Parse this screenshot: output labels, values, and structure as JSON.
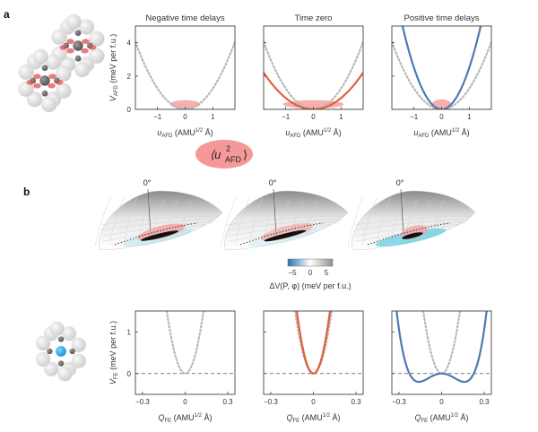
{
  "figure": {
    "panel_labels": [
      "a",
      "b"
    ],
    "colors": {
      "reference_dotted": "#b8b8b8",
      "time_zero": "#e0603c",
      "positive_delay": "#4f79b4",
      "fluctuation_ellipse": "#f4a0a0",
      "baseline": "#555555"
    },
    "u2_badge": {
      "text_main": "⟨u",
      "sup": "2",
      "sub": "AFD",
      "text_close": "⟩"
    },
    "colorbar": {
      "ticks": [
        "−5",
        "0",
        "5"
      ],
      "label": "ΔV(P, φ) (meV per f.u.)",
      "range": [
        -8,
        8
      ],
      "colors": [
        "#2a6fb0",
        "#ffffff",
        "#909090"
      ]
    },
    "landscape_angle_labels": [
      "0°",
      "0°",
      "0°"
    ]
  },
  "chart_data": [
    {
      "type": "line",
      "panel": "a",
      "title": "Negative time delays",
      "xlabel": "u_AFD (AMU^1/2 Å)",
      "xlabel_parts": {
        "sym": "u",
        "sub": "AFD",
        "rest": " (AMU",
        "sup": "1/2",
        "end": " Å)"
      },
      "ylabel": "V_AFD (meV per f.u.)",
      "ylabel_parts": {
        "sym": "V",
        "sub": "AFD",
        "rest": " (meV per f.u.)"
      },
      "xlim": [
        -1.8,
        1.8
      ],
      "ylim": [
        0,
        5
      ],
      "xticks": [
        -1,
        0,
        1
      ],
      "xtick_labels": [
        "−1",
        "0",
        "1"
      ],
      "yticks": [
        0,
        2,
        4
      ],
      "ytick_labels": [
        "0",
        "2",
        "4"
      ],
      "series": [
        {
          "name": "reference",
          "style": "dotted",
          "color": "#b8b8b8",
          "formula": "1.25*x^2"
        }
      ],
      "ellipse": {
        "center": [
          0,
          0.3
        ],
        "half_width": 0.55,
        "half_height": 0.25
      }
    },
    {
      "type": "line",
      "panel": "a",
      "title": "Time zero",
      "xlabel": "u_AFD (AMU^1/2 Å)",
      "xlabel_parts": {
        "sym": "u",
        "sub": "AFD",
        "rest": " (AMU",
        "sup": "1/2",
        "end": " Å)"
      },
      "xlim": [
        -1.8,
        1.8
      ],
      "ylim": [
        0,
        5
      ],
      "xticks": [
        -1,
        0,
        1
      ],
      "xtick_labels": [
        "−1",
        "0",
        "1"
      ],
      "yticks": [
        0,
        2,
        4
      ],
      "series": [
        {
          "name": "reference",
          "style": "dotted",
          "color": "#b8b8b8",
          "formula": "1.25*x^2"
        },
        {
          "name": "time zero",
          "style": "solid",
          "color": "#e0603c",
          "formula": "0.68*x^2"
        }
      ],
      "ellipse": {
        "center": [
          0,
          0.3
        ],
        "half_width": 1.1,
        "half_height": 0.25
      }
    },
    {
      "type": "line",
      "panel": "a",
      "title": "Positive time delays",
      "xlabel": "u_AFD (AMU^1/2 Å)",
      "xlabel_parts": {
        "sym": "u",
        "sub": "AFD",
        "rest": " (AMU",
        "sup": "1/2",
        "end": " Å)"
      },
      "xlim": [
        -1.8,
        1.8
      ],
      "ylim": [
        0,
        5
      ],
      "xticks": [
        -1,
        0,
        1
      ],
      "xtick_labels": [
        "−1",
        "0",
        "1"
      ],
      "yticks": [
        0,
        2,
        4
      ],
      "series": [
        {
          "name": "reference",
          "style": "dotted",
          "color": "#b8b8b8",
          "formula": "1.25*x^2"
        },
        {
          "name": "positive delays",
          "style": "solid",
          "color": "#4f79b4",
          "formula": "2.5*x^2"
        }
      ],
      "ellipse": {
        "center": [
          0,
          0.3
        ],
        "half_width": 0.35,
        "half_height": 0.3
      }
    },
    {
      "type": "line",
      "panel": "b",
      "xlabel": "Q_FE (AMU^1/2 Å)",
      "xlabel_parts": {
        "sym": "Q",
        "sub": "FE",
        "rest": " (AMU",
        "sup": "1/2",
        "end": " Å)"
      },
      "ylabel": "V_FE (meV per f.u.)",
      "ylabel_parts": {
        "sym": "V",
        "sub": "FE",
        "rest": " (meV per f.u.)"
      },
      "xlim": [
        -0.35,
        0.35
      ],
      "ylim": [
        -0.5,
        1.5
      ],
      "xticks": [
        -0.3,
        0,
        0.3
      ],
      "xtick_labels": [
        "−0.3",
        "0",
        "0.3"
      ],
      "yticks": [
        0,
        1
      ],
      "ytick_labels": [
        "0",
        "1"
      ],
      "series": [
        {
          "name": "reference",
          "style": "dotted",
          "color": "#b8b8b8",
          "formula": "90*x^2"
        }
      ]
    },
    {
      "type": "line",
      "panel": "b",
      "xlabel": "Q_FE (AMU^1/2 Å)",
      "xlabel_parts": {
        "sym": "Q",
        "sub": "FE",
        "rest": " (AMU",
        "sup": "1/2",
        "end": " Å)"
      },
      "xlim": [
        -0.35,
        0.35
      ],
      "ylim": [
        -0.5,
        1.5
      ],
      "xticks": [
        -0.3,
        0,
        0.3
      ],
      "xtick_labels": [
        "−0.3",
        "0",
        "0.3"
      ],
      "yticks": [
        0,
        1
      ],
      "series": [
        {
          "name": "reference",
          "style": "dotted",
          "color": "#b8b8b8",
          "formula": "90*x^2"
        },
        {
          "name": "time zero",
          "style": "solid",
          "color": "#e0603c",
          "formula": "110*x^2"
        }
      ]
    },
    {
      "type": "line",
      "panel": "b",
      "xlabel": "Q_FE (AMU^1/2 Å)",
      "xlabel_parts": {
        "sym": "Q",
        "sub": "FE",
        "rest": " (AMU",
        "sup": "1/2",
        "end": " Å)"
      },
      "xlim": [
        -0.35,
        0.35
      ],
      "ylim": [
        -0.5,
        1.5
      ],
      "xticks": [
        -0.3,
        0,
        0.3
      ],
      "xtick_labels": [
        "−0.3",
        "0",
        "0.3"
      ],
      "yticks": [
        0,
        1
      ],
      "series": [
        {
          "name": "reference",
          "style": "dotted",
          "color": "#b8b8b8",
          "formula": "90*x^2"
        },
        {
          "name": "positive delays",
          "style": "solid",
          "color": "#4f79b4",
          "double_well": {
            "q_min": 0.16,
            "v_min": -0.2
          }
        }
      ]
    }
  ]
}
